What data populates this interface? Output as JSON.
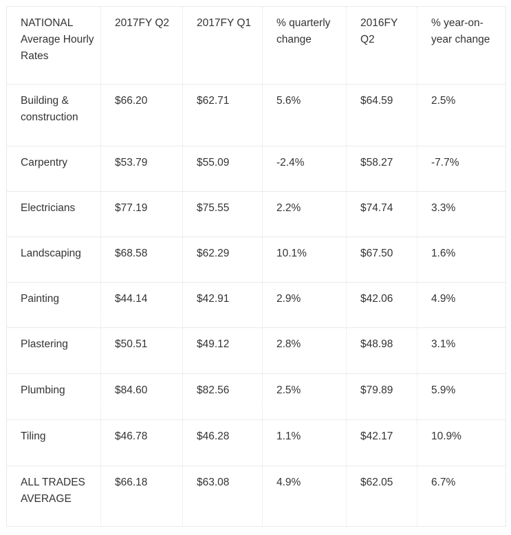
{
  "table": {
    "headers": [
      "NATIONAL Average Hourly Rates",
      "2017FY Q2",
      "2017FY Q1",
      "% quarterly change",
      "2016FY Q2",
      "% year-on-year change"
    ],
    "rows": [
      [
        "Building & construction",
        "$66.20",
        "$62.71",
        "5.6%",
        "$64.59",
        "2.5%"
      ],
      [
        "Carpentry",
        "$53.79",
        "$55.09",
        "-2.4%",
        "$58.27",
        "-7.7%"
      ],
      [
        "Electricians",
        "$77.19",
        "$75.55",
        "2.2%",
        "$74.74",
        "3.3%"
      ],
      [
        "Landscaping",
        "$68.58",
        "$62.29",
        "10.1%",
        "$67.50",
        "1.6%"
      ],
      [
        "Painting",
        "$44.14",
        "$42.91",
        "2.9%",
        "$42.06",
        "4.9%"
      ],
      [
        "Plastering",
        "$50.51",
        "$49.12",
        "2.8%",
        "$48.98",
        "3.1%"
      ],
      [
        "Plumbing",
        "$84.60",
        "$82.56",
        "2.5%",
        "$79.89",
        "5.9%"
      ],
      [
        "Tiling",
        "$46.78",
        "$46.28",
        "1.1%",
        "$42.17",
        "10.9%"
      ],
      [
        "ALL TRADES AVERAGE",
        "$66.18",
        "$63.08",
        "4.9%",
        "$62.05",
        "6.7%"
      ]
    ]
  }
}
